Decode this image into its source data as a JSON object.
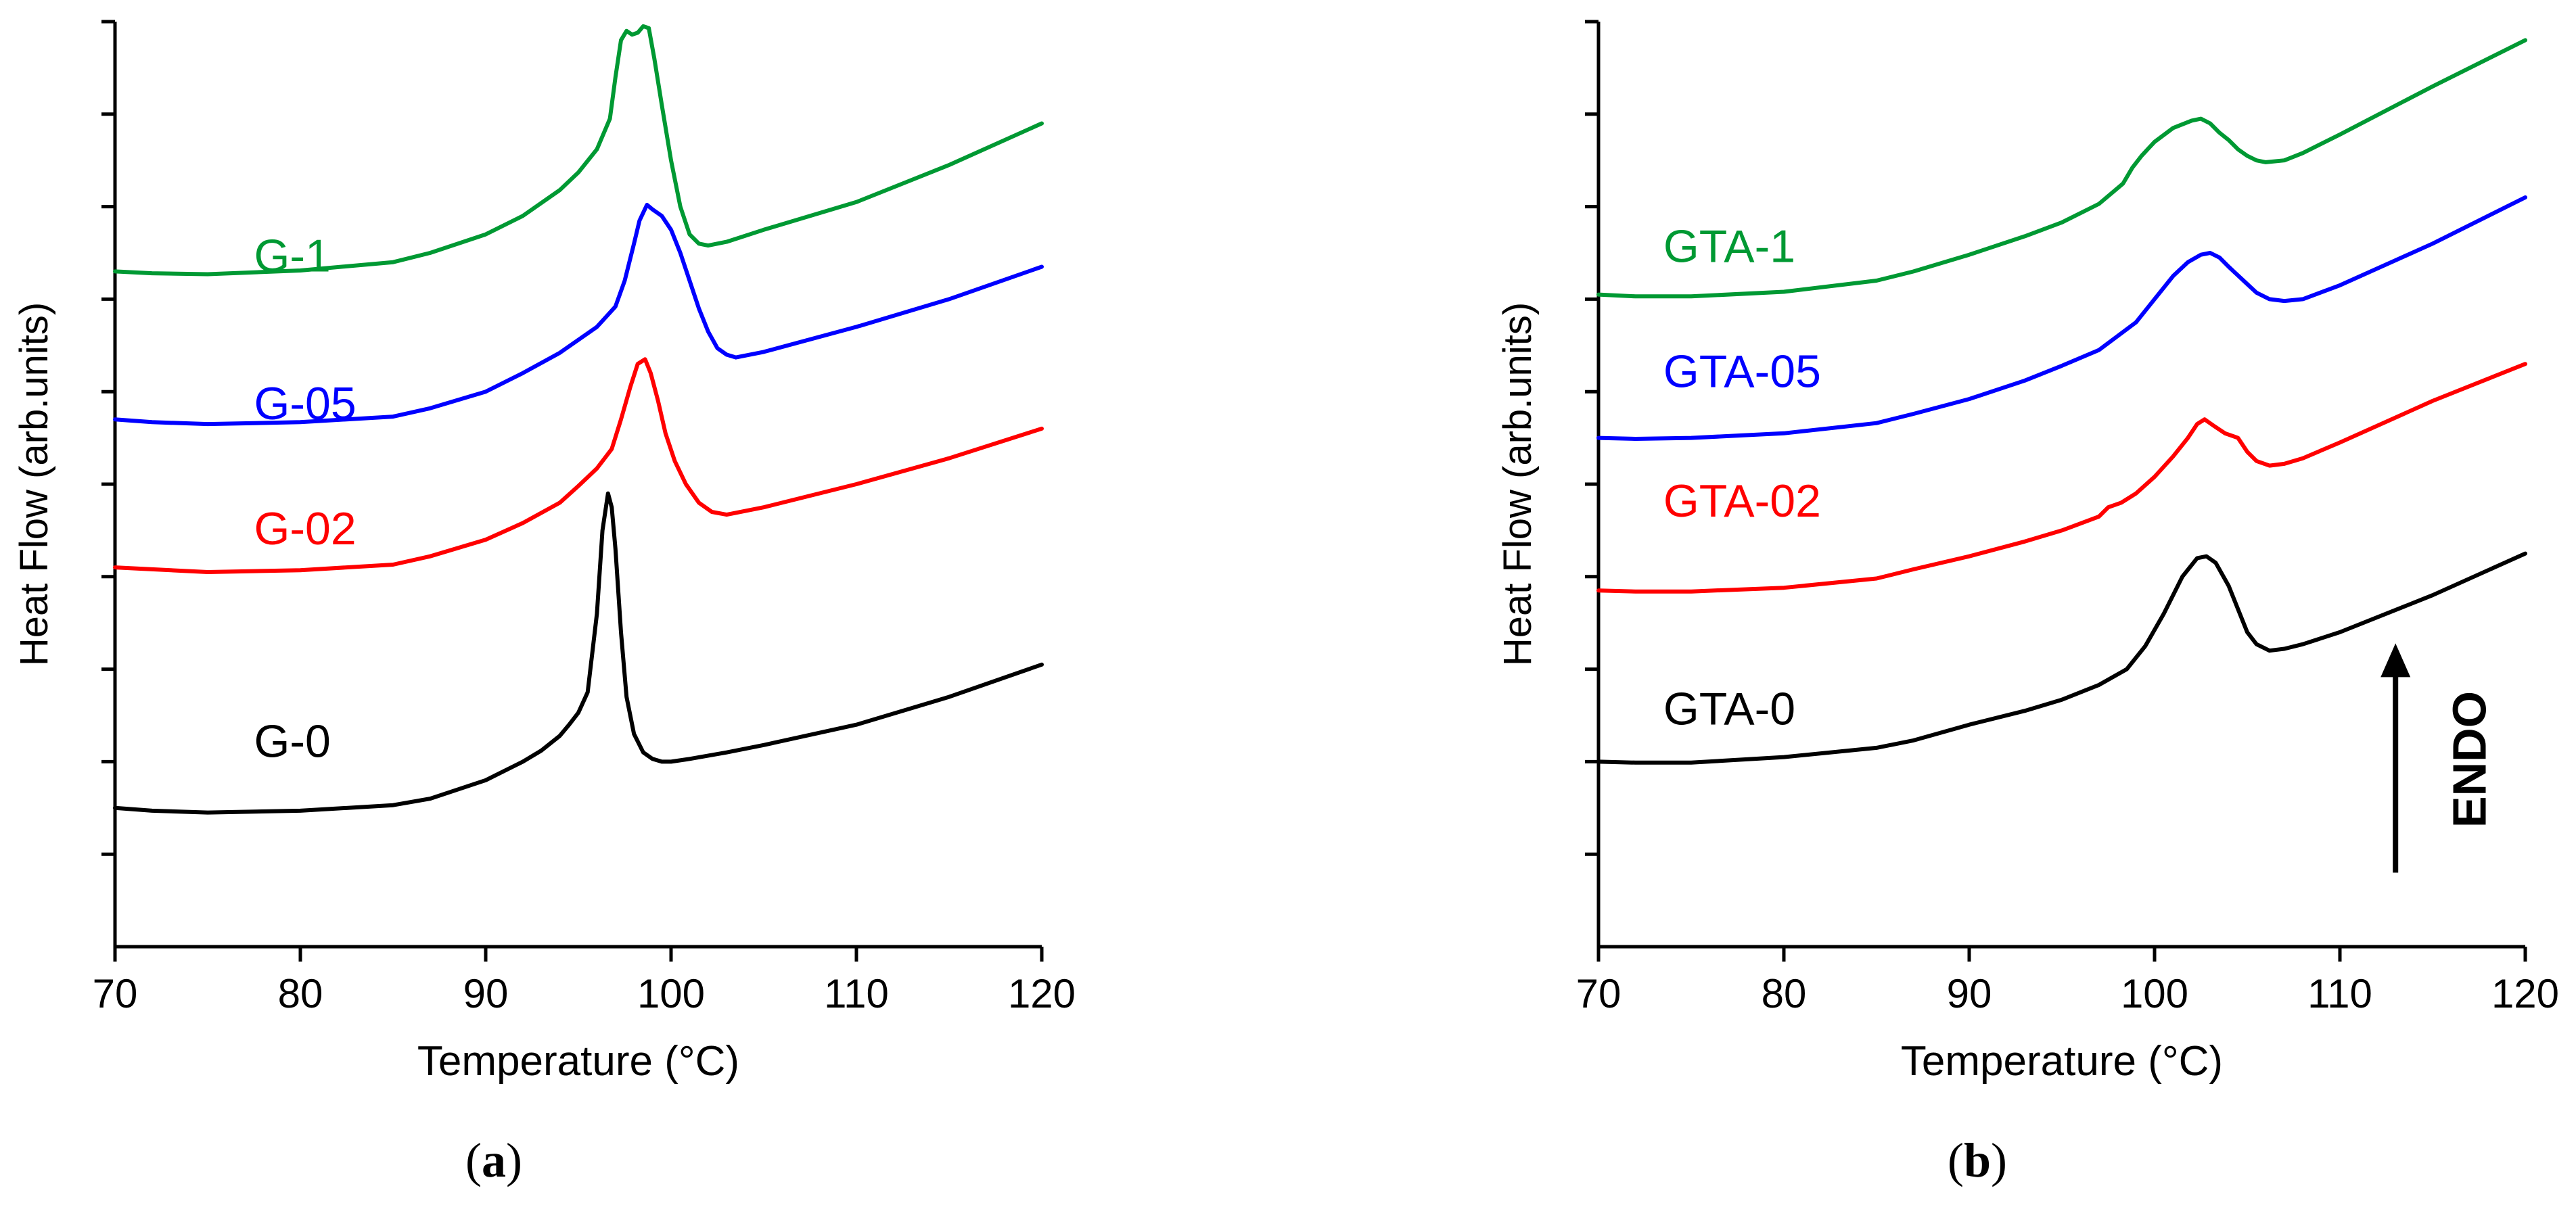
{
  "chart_data": [
    {
      "type": "line",
      "panel_label": "(a)",
      "panel_letter": "a",
      "xlabel": "Temperature (°C)",
      "ylabel": "Heat Flow (arb.units)",
      "xlim": [
        70,
        120
      ],
      "ylim": [
        0,
        10
      ],
      "xticks": [
        70,
        80,
        90,
        100,
        110,
        120
      ],
      "y_minor_tick_count": 10,
      "y_tick_labels": false,
      "grid": false,
      "legend": "inline labels",
      "series": [
        {
          "name": "G-0",
          "color": "#000000",
          "label_pos": [
            77.5,
            2.05
          ],
          "x": [
            70,
            72,
            75,
            80,
            85,
            87,
            90,
            92,
            93,
            94,
            94.5,
            95,
            95.5,
            96,
            96.3,
            96.6,
            96.8,
            97.0,
            97.3,
            97.6,
            98,
            98.5,
            99,
            99.5,
            100,
            101,
            103,
            105,
            110,
            115,
            120
          ],
          "y": [
            1.5,
            1.47,
            1.45,
            1.47,
            1.53,
            1.6,
            1.8,
            2.0,
            2.12,
            2.28,
            2.4,
            2.53,
            2.75,
            3.6,
            4.5,
            4.9,
            4.75,
            4.3,
            3.4,
            2.7,
            2.3,
            2.1,
            2.03,
            2.0,
            2.0,
            2.03,
            2.1,
            2.18,
            2.4,
            2.7,
            3.05
          ]
        },
        {
          "name": "G-02",
          "color": "#ff0000",
          "label_pos": [
            77.5,
            4.35
          ],
          "x": [
            70,
            72,
            75,
            80,
            85,
            87,
            90,
            92,
            94,
            95,
            96,
            96.8,
            97.3,
            97.8,
            98.2,
            98.6,
            98.9,
            99.3,
            99.7,
            100.2,
            100.8,
            101.5,
            102.2,
            103,
            105,
            110,
            115,
            120
          ],
          "y": [
            4.1,
            4.08,
            4.05,
            4.07,
            4.13,
            4.22,
            4.4,
            4.58,
            4.8,
            4.98,
            5.17,
            5.38,
            5.7,
            6.05,
            6.3,
            6.35,
            6.2,
            5.9,
            5.55,
            5.25,
            5.0,
            4.8,
            4.7,
            4.67,
            4.75,
            5.0,
            5.28,
            5.6
          ]
        },
        {
          "name": "G-05",
          "color": "#0000ff",
          "label_pos": [
            77.5,
            5.7
          ],
          "x": [
            70,
            72,
            75,
            80,
            85,
            87,
            90,
            92,
            94,
            96,
            97,
            97.5,
            98,
            98.3,
            98.7,
            99.0,
            99.5,
            100,
            100.5,
            101,
            101.5,
            102,
            102.5,
            103,
            103.5,
            105,
            110,
            115,
            120
          ],
          "y": [
            5.7,
            5.67,
            5.65,
            5.67,
            5.73,
            5.82,
            6.0,
            6.2,
            6.42,
            6.7,
            6.92,
            7.2,
            7.6,
            7.85,
            8.02,
            7.97,
            7.9,
            7.75,
            7.5,
            7.2,
            6.9,
            6.65,
            6.47,
            6.4,
            6.37,
            6.43,
            6.7,
            7.0,
            7.35
          ]
        },
        {
          "name": "G-1",
          "color": "#009933",
          "label_pos": [
            77.5,
            7.3
          ],
          "x": [
            70,
            72,
            75,
            80,
            85,
            87,
            90,
            92,
            94,
            95,
            96,
            96.7,
            97.0,
            97.3,
            97.6,
            97.9,
            98.2,
            98.5,
            98.8,
            99.1,
            99.5,
            100,
            100.5,
            101,
            101.5,
            102,
            103,
            105,
            110,
            115,
            120
          ],
          "y": [
            7.3,
            7.28,
            7.27,
            7.31,
            7.4,
            7.5,
            7.7,
            7.9,
            8.18,
            8.37,
            8.62,
            8.95,
            9.4,
            9.8,
            9.9,
            9.86,
            9.88,
            9.95,
            9.93,
            9.6,
            9.1,
            8.5,
            8.0,
            7.7,
            7.6,
            7.58,
            7.62,
            7.75,
            8.05,
            8.45,
            8.9
          ]
        }
      ]
    },
    {
      "type": "line",
      "panel_label": "(b)",
      "panel_letter": "b",
      "xlabel": "Temperature (°C)",
      "ylabel": "Heat Flow (arb.units)",
      "xlim": [
        70,
        120
      ],
      "ylim": [
        0,
        10
      ],
      "xticks": [
        70,
        80,
        90,
        100,
        110,
        120
      ],
      "y_minor_tick_count": 10,
      "y_tick_labels": false,
      "grid": false,
      "legend": "inline labels",
      "annotation": "ENDO",
      "annotation_arrow": {
        "x": 113,
        "y_from": 0.8,
        "y_to": 3.25
      },
      "series": [
        {
          "name": "GTA-0",
          "color": "#000000",
          "label_pos": [
            73.5,
            2.4
          ],
          "x": [
            70,
            72,
            75,
            80,
            85,
            87,
            90,
            93,
            95,
            97,
            98.5,
            99.5,
            100.5,
            101.5,
            102.3,
            102.8,
            103.3,
            104,
            104.5,
            105,
            105.5,
            106.2,
            107,
            108,
            110,
            115,
            120
          ],
          "y": [
            2.0,
            1.99,
            1.99,
            2.05,
            2.15,
            2.23,
            2.4,
            2.55,
            2.67,
            2.83,
            3.0,
            3.25,
            3.6,
            4.0,
            4.2,
            4.22,
            4.15,
            3.9,
            3.65,
            3.4,
            3.27,
            3.2,
            3.22,
            3.27,
            3.4,
            3.8,
            4.25
          ]
        },
        {
          "name": "GTA-02",
          "color": "#ff0000",
          "label_pos": [
            73.5,
            4.65
          ],
          "x": [
            70,
            72,
            75,
            80,
            85,
            87,
            90,
            93,
            95,
            97,
            97.5,
            98.2,
            99,
            100,
            101,
            101.8,
            102.3,
            102.7,
            103.2,
            103.8,
            104.5,
            105,
            105.5,
            106.2,
            107,
            108,
            110,
            115,
            120
          ],
          "y": [
            3.85,
            3.84,
            3.84,
            3.88,
            3.98,
            4.08,
            4.22,
            4.38,
            4.5,
            4.65,
            4.75,
            4.8,
            4.9,
            5.08,
            5.3,
            5.5,
            5.65,
            5.7,
            5.63,
            5.55,
            5.5,
            5.35,
            5.25,
            5.2,
            5.22,
            5.28,
            5.45,
            5.9,
            6.3
          ]
        },
        {
          "name": "GTA-05",
          "color": "#0000ff",
          "label_pos": [
            73.5,
            6.05
          ],
          "x": [
            70,
            72,
            75,
            80,
            85,
            87,
            90,
            93,
            95,
            97,
            99,
            100,
            101,
            101.8,
            102.5,
            103,
            103.5,
            104,
            104.8,
            105.5,
            106.2,
            107,
            108,
            110,
            115,
            120
          ],
          "y": [
            5.5,
            5.49,
            5.5,
            5.55,
            5.66,
            5.76,
            5.92,
            6.12,
            6.28,
            6.45,
            6.75,
            7.0,
            7.25,
            7.4,
            7.48,
            7.5,
            7.45,
            7.35,
            7.2,
            7.07,
            7.0,
            6.98,
            7.0,
            7.15,
            7.6,
            8.1
          ]
        },
        {
          "name": "GTA-1",
          "color": "#009933",
          "label_pos": [
            73.5,
            7.4
          ],
          "x": [
            70,
            72,
            75,
            80,
            85,
            87,
            90,
            93,
            95,
            97,
            98.3,
            98.8,
            99.3,
            100,
            101,
            102,
            102.5,
            103,
            103.5,
            104,
            104.5,
            105,
            105.5,
            106,
            107,
            108,
            110,
            115,
            120
          ],
          "y": [
            7.05,
            7.03,
            7.03,
            7.08,
            7.2,
            7.3,
            7.48,
            7.68,
            7.83,
            8.03,
            8.25,
            8.42,
            8.55,
            8.7,
            8.85,
            8.93,
            8.95,
            8.9,
            8.8,
            8.72,
            8.62,
            8.55,
            8.5,
            8.48,
            8.5,
            8.58,
            8.78,
            9.3,
            9.8
          ]
        }
      ]
    }
  ]
}
